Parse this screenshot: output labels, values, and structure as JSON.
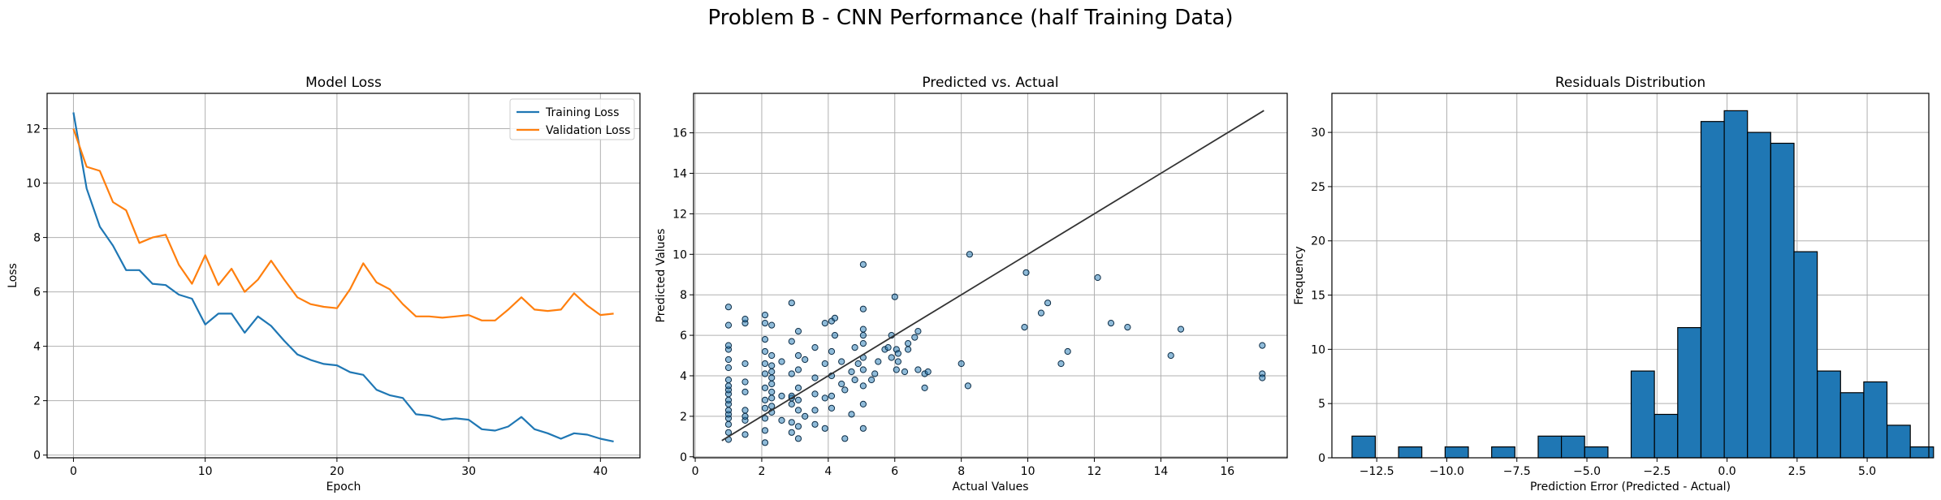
{
  "figure": {
    "suptitle": "Problem B - CNN Performance (half Training Data)"
  },
  "colors": {
    "training": "#1f77b4",
    "validation": "#ff7f0e",
    "scatter": "#1f77b4",
    "hist": "#1f77b4",
    "edge": "#000000",
    "grid": "#b0b0b0",
    "identity": "#333333"
  },
  "chart_data": [
    {
      "type": "line",
      "title": "Model Loss",
      "xlabel": "Epoch",
      "ylabel": "Loss",
      "xlim": [
        -2,
        43
      ],
      "ylim": [
        -0.1,
        13.3
      ],
      "xticks": [
        0,
        10,
        20,
        30,
        40
      ],
      "yticks": [
        0,
        2,
        4,
        6,
        8,
        10,
        12
      ],
      "grid": true,
      "legend": "top-right",
      "x": [
        0,
        1,
        2,
        3,
        4,
        5,
        6,
        7,
        8,
        9,
        10,
        11,
        12,
        13,
        14,
        15,
        16,
        17,
        18,
        19,
        20,
        21,
        22,
        23,
        24,
        25,
        26,
        27,
        28,
        29,
        30,
        31,
        32,
        33,
        34,
        35,
        36,
        37,
        38,
        39,
        40,
        41
      ],
      "series": [
        {
          "name": "Training Loss",
          "values": [
            12.6,
            9.8,
            8.4,
            7.7,
            6.8,
            6.8,
            6.3,
            6.25,
            5.9,
            5.75,
            4.8,
            5.2,
            5.2,
            4.5,
            5.1,
            4.75,
            4.2,
            3.7,
            3.5,
            3.35,
            3.3,
            3.05,
            2.95,
            2.4,
            2.2,
            2.1,
            1.5,
            1.45,
            1.3,
            1.35,
            1.3,
            0.95,
            0.9,
            1.05,
            1.4,
            0.95,
            0.8,
            0.6,
            0.8,
            0.75,
            0.6,
            0.5
          ]
        },
        {
          "name": "Validation Loss",
          "values": [
            12.0,
            10.6,
            10.45,
            9.3,
            9.0,
            7.8,
            8.0,
            8.1,
            7.0,
            6.3,
            7.35,
            6.25,
            6.85,
            6.0,
            6.45,
            7.15,
            6.45,
            5.8,
            5.55,
            5.45,
            5.4,
            6.1,
            7.05,
            6.35,
            6.1,
            5.55,
            5.1,
            5.1,
            5.05,
            5.1,
            5.15,
            4.95,
            4.95,
            5.35,
            5.8,
            5.35,
            5.3,
            5.35,
            5.95,
            5.5,
            5.15,
            5.2
          ]
        }
      ]
    },
    {
      "type": "scatter",
      "title": "Predicted vs. Actual",
      "xlabel": "Actual Values",
      "ylabel": "Predicted Values",
      "xlim": [
        -0.05,
        17.8
      ],
      "ylim": [
        -0.05,
        17.95
      ],
      "xticks": [
        0,
        2,
        4,
        6,
        8,
        10,
        12,
        14,
        16
      ],
      "yticks": [
        0,
        2,
        4,
        6,
        8,
        10,
        12,
        14,
        16
      ],
      "grid": true,
      "reference_line": {
        "x": [
          0.8,
          17.1
        ],
        "y": [
          0.8,
          17.1
        ]
      },
      "points": [
        [
          1,
          0.85
        ],
        [
          1,
          1.2
        ],
        [
          1,
          1.6
        ],
        [
          1,
          1.9
        ],
        [
          1,
          2.1
        ],
        [
          1,
          2.3
        ],
        [
          1,
          2.6
        ],
        [
          1,
          2.8
        ],
        [
          1,
          3.1
        ],
        [
          1,
          3.3
        ],
        [
          1,
          3.5
        ],
        [
          1,
          3.8
        ],
        [
          1,
          4.4
        ],
        [
          1,
          4.8
        ],
        [
          1,
          5.3
        ],
        [
          1,
          5.5
        ],
        [
          1,
          6.5
        ],
        [
          1,
          7.4
        ],
        [
          1.5,
          1.1
        ],
        [
          1.5,
          1.8
        ],
        [
          1.5,
          2.0
        ],
        [
          1.5,
          2.3
        ],
        [
          1.5,
          3.2
        ],
        [
          1.5,
          3.7
        ],
        [
          1.5,
          4.6
        ],
        [
          1.5,
          6.6
        ],
        [
          1.5,
          6.8
        ],
        [
          2.1,
          0.7
        ],
        [
          2.1,
          1.3
        ],
        [
          2.1,
          1.9
        ],
        [
          2.1,
          2.4
        ],
        [
          2.1,
          2.8
        ],
        [
          2.1,
          3.4
        ],
        [
          2.1,
          4.1
        ],
        [
          2.1,
          4.6
        ],
        [
          2.1,
          5.2
        ],
        [
          2.1,
          5.8
        ],
        [
          2.1,
          6.6
        ],
        [
          2.1,
          7.0
        ],
        [
          2.3,
          2.2
        ],
        [
          2.3,
          2.5
        ],
        [
          2.3,
          2.9
        ],
        [
          2.3,
          3.2
        ],
        [
          2.3,
          3.6
        ],
        [
          2.3,
          3.9
        ],
        [
          2.3,
          4.2
        ],
        [
          2.3,
          4.5
        ],
        [
          2.3,
          5.0
        ],
        [
          2.3,
          6.5
        ],
        [
          2.6,
          1.8
        ],
        [
          2.6,
          3.0
        ],
        [
          2.6,
          4.7
        ],
        [
          2.9,
          1.2
        ],
        [
          2.9,
          1.7
        ],
        [
          2.9,
          2.6
        ],
        [
          2.9,
          2.9
        ],
        [
          2.9,
          3.0
        ],
        [
          2.9,
          4.1
        ],
        [
          2.9,
          5.7
        ],
        [
          2.9,
          7.6
        ],
        [
          3.1,
          0.9
        ],
        [
          3.1,
          1.5
        ],
        [
          3.1,
          2.3
        ],
        [
          3.1,
          2.8
        ],
        [
          3.1,
          3.4
        ],
        [
          3.1,
          4.3
        ],
        [
          3.1,
          5.0
        ],
        [
          3.1,
          6.2
        ],
        [
          3.3,
          2.0
        ],
        [
          3.3,
          4.8
        ],
        [
          3.6,
          1.6
        ],
        [
          3.6,
          2.3
        ],
        [
          3.6,
          3.1
        ],
        [
          3.6,
          3.9
        ],
        [
          3.6,
          5.4
        ],
        [
          3.9,
          1.4
        ],
        [
          3.9,
          2.9
        ],
        [
          3.9,
          4.6
        ],
        [
          3.9,
          6.6
        ],
        [
          4.1,
          2.4
        ],
        [
          4.1,
          3.0
        ],
        [
          4.1,
          4.0
        ],
        [
          4.1,
          5.2
        ],
        [
          4.1,
          6.7
        ],
        [
          4.2,
          6.0
        ],
        [
          4.2,
          6.85
        ],
        [
          4.4,
          3.6
        ],
        [
          4.4,
          4.7
        ],
        [
          4.5,
          0.9
        ],
        [
          4.5,
          3.3
        ],
        [
          4.7,
          2.1
        ],
        [
          4.7,
          4.2
        ],
        [
          4.8,
          5.4
        ],
        [
          4.8,
          3.8
        ],
        [
          4.9,
          4.6
        ],
        [
          5.05,
          1.4
        ],
        [
          5.05,
          2.6
        ],
        [
          5.05,
          3.5
        ],
        [
          5.05,
          4.3
        ],
        [
          5.05,
          4.9
        ],
        [
          5.05,
          5.6
        ],
        [
          5.05,
          6.0
        ],
        [
          5.05,
          6.3
        ],
        [
          5.05,
          7.3
        ],
        [
          5.05,
          9.5
        ],
        [
          5.3,
          3.8
        ],
        [
          5.4,
          4.1
        ],
        [
          5.5,
          4.7
        ],
        [
          5.7,
          5.3
        ],
        [
          5.8,
          5.4
        ],
        [
          5.9,
          4.9
        ],
        [
          5.9,
          6.0
        ],
        [
          6.0,
          7.9
        ],
        [
          6.05,
          5.3
        ],
        [
          6.05,
          4.3
        ],
        [
          6.1,
          4.7
        ],
        [
          6.1,
          5.1
        ],
        [
          6.3,
          4.2
        ],
        [
          6.4,
          5.3
        ],
        [
          6.4,
          5.6
        ],
        [
          6.6,
          5.9
        ],
        [
          6.7,
          4.3
        ],
        [
          6.7,
          6.2
        ],
        [
          6.9,
          3.4
        ],
        [
          6.9,
          4.1
        ],
        [
          7.0,
          4.2
        ],
        [
          8.0,
          4.6
        ],
        [
          8.2,
          3.5
        ],
        [
          8.25,
          10.0
        ],
        [
          9.9,
          6.4
        ],
        [
          9.95,
          9.1
        ],
        [
          10.4,
          7.1
        ],
        [
          10.6,
          7.6
        ],
        [
          11.0,
          4.6
        ],
        [
          11.2,
          5.2
        ],
        [
          12.1,
          8.85
        ],
        [
          12.5,
          6.6
        ],
        [
          13.0,
          6.4
        ],
        [
          14.3,
          5.0
        ],
        [
          14.6,
          6.3
        ],
        [
          17.05,
          5.5
        ],
        [
          17.05,
          4.1
        ],
        [
          17.05,
          3.9
        ]
      ]
    },
    {
      "type": "bar",
      "title": "Residuals Distribution",
      "xlabel": "Prediction Error (Predicted - Actual)",
      "ylabel": "Frequency",
      "xlim": [
        -14.1,
        7.2
      ],
      "ylim": [
        0,
        33.6
      ],
      "xticks": [
        -12.5,
        -10.0,
        -7.5,
        -5.0,
        -2.5,
        0.0,
        2.5,
        5.0
      ],
      "xtick_labels": [
        "−12.5",
        "−10.0",
        "−7.5",
        "−5.0",
        "−2.5",
        "0.0",
        "2.5",
        "5.0"
      ],
      "yticks": [
        0,
        5,
        10,
        15,
        20,
        25,
        30
      ],
      "grid": true,
      "bin_start": -13.38,
      "bin_width": 0.83,
      "counts": [
        2,
        0,
        1,
        0,
        1,
        0,
        1,
        0,
        2,
        2,
        1,
        0,
        8,
        4,
        12,
        31,
        32,
        30,
        29,
        19,
        8,
        6,
        7,
        3,
        1
      ]
    }
  ]
}
